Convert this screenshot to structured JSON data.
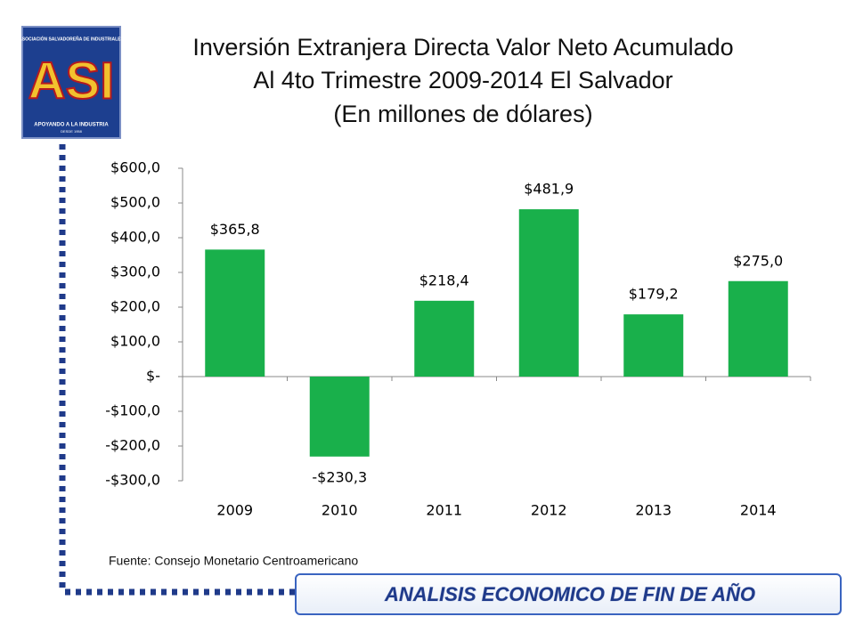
{
  "logo": {
    "top": "ASOCIACIÓN SALVADOREÑA DE INDUSTRIALES",
    "name": "ASI",
    "bottom": "APOYANDO A LA INDUSTRIA",
    "since": "DESDE 1958"
  },
  "source": "Fuente: Consejo Monetario Centroamericano",
  "footer": "ANALISIS ECONOMICO DE FIN DE AÑO",
  "chart_data": {
    "type": "bar",
    "title": "Inversión Extranjera Directa Valor Neto Acumulado",
    "subtitle": [
      "Al 4to Trimestre 2009-2014  El Salvador",
      "(En millones de dólares)"
    ],
    "categories": [
      "2009",
      "2010",
      "2011",
      "2012",
      "2013",
      "2014"
    ],
    "values": [
      365.8,
      -230.3,
      218.4,
      481.9,
      179.2,
      275.0
    ],
    "value_labels": [
      "$365,8",
      "-$230,3",
      "$218,4",
      "$481,9",
      "$179,2",
      "$275,0"
    ],
    "color": "#19b04b",
    "ylim": [
      -300,
      600
    ],
    "yticks": [
      {
        "value": 600,
        "label": "$600,0"
      },
      {
        "value": 500,
        "label": "$500,0"
      },
      {
        "value": 400,
        "label": "$400,0"
      },
      {
        "value": 300,
        "label": "$300,0"
      },
      {
        "value": 200,
        "label": "$200,0"
      },
      {
        "value": 100,
        "label": "$100,0"
      },
      {
        "value": 0,
        "label": "$-"
      },
      {
        "value": -100,
        "label": "-$100,0"
      },
      {
        "value": -200,
        "label": "-$200,0"
      },
      {
        "value": -300,
        "label": "-$300,0"
      }
    ],
    "grid": false
  }
}
